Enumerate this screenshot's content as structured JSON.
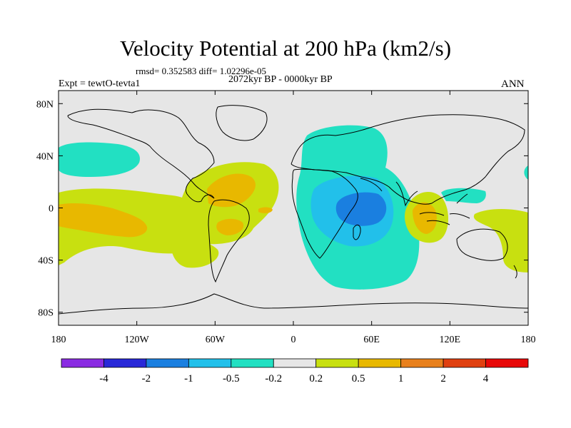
{
  "title": "Velocity Potential at 200 hPa (km2/s)",
  "stats": "rmsd= 0.352583  diff= 1.02296e-05",
  "experiment": "Expt = tewtO-tevta1",
  "period": "2072kyr BP - 0000kyr BP",
  "season": "ANN",
  "lat_labels": [
    "80N",
    "40N",
    "0",
    "40S",
    "80S"
  ],
  "lat_values": [
    80,
    40,
    0,
    -40,
    -80
  ],
  "lon_labels": [
    "180",
    "120W",
    "60W",
    "0",
    "60E",
    "120E",
    "180"
  ],
  "lon_values": [
    -180,
    -120,
    -60,
    0,
    60,
    120,
    180
  ],
  "colorbar": {
    "labels": [
      "-4",
      "-2",
      "-1",
      "-0.5",
      "-0.2",
      "0.2",
      "0.5",
      "1",
      "2",
      "4"
    ],
    "colors": [
      "#8a2be2",
      "#2828d8",
      "#1a7fe0",
      "#22c0ea",
      "#22e0c2",
      "#e6e6e6",
      "#c8e010",
      "#e8b800",
      "#e8801c",
      "#e04010",
      "#e80808"
    ]
  },
  "colors": {
    "ocean_neutral": "#e6e6e6",
    "cyan": "#22e0c2",
    "light_blue": "#22c0ea",
    "blue": "#1a7fe0",
    "yellow_green": "#c8e010",
    "orange": "#e8b800"
  }
}
